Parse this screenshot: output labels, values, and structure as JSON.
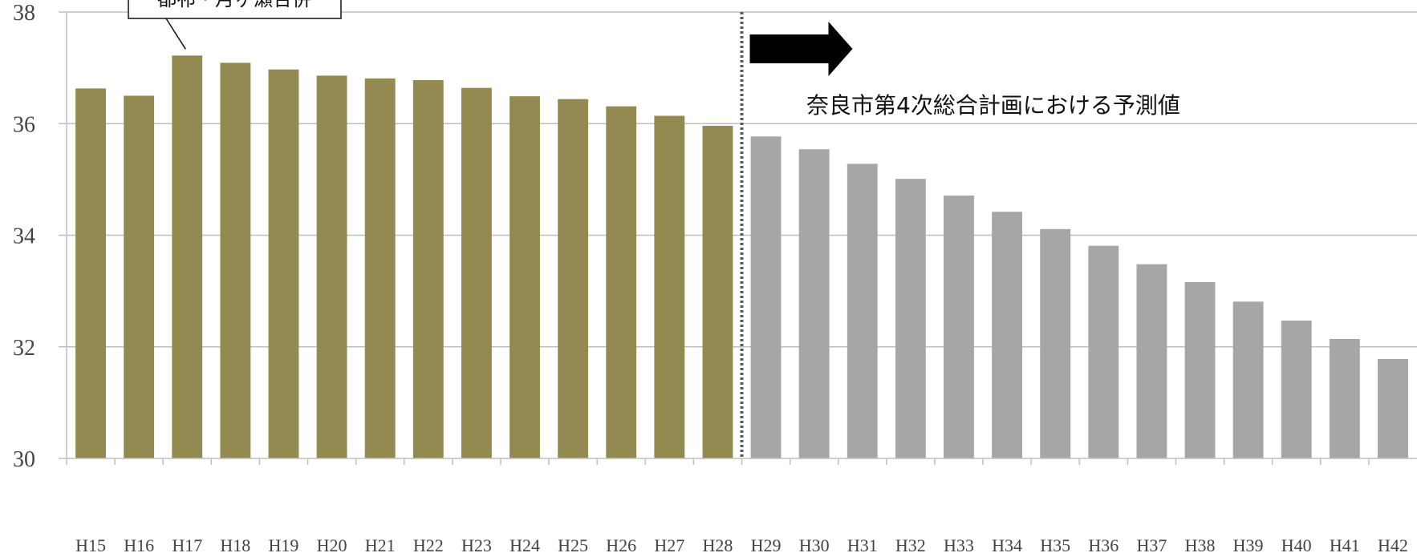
{
  "chart_data": {
    "type": "bar",
    "title": "",
    "xlabel": "",
    "ylabel": "",
    "ylim": [
      30,
      38
    ],
    "yticks": [
      30,
      32,
      34,
      36,
      38
    ],
    "grid": true,
    "categories": [
      "H15",
      "H16",
      "H17",
      "H18",
      "H19",
      "H20",
      "H21",
      "H22",
      "H23",
      "H24",
      "H25",
      "H26",
      "H27",
      "H28",
      "H29",
      "H30",
      "H31",
      "H32",
      "H33",
      "H34",
      "H35",
      "H36",
      "H37",
      "H38",
      "H39",
      "H40",
      "H41",
      "H42"
    ],
    "values": [
      36.63,
      36.5,
      37.22,
      37.09,
      36.97,
      36.86,
      36.81,
      36.78,
      36.64,
      36.49,
      36.44,
      36.31,
      36.14,
      35.96,
      35.77,
      35.54,
      35.28,
      35.01,
      34.71,
      34.42,
      34.11,
      33.81,
      33.48,
      33.16,
      32.81,
      32.47,
      32.14,
      31.78
    ],
    "actual_count": 14,
    "colors": {
      "actual": "#938a51",
      "forecast": "#a6a6a6",
      "grid": "#bfbfbf",
      "divider": "#595959",
      "arrow": "#000000"
    },
    "annotations": {
      "forecast_label": "奈良市第4次総合計画における予測値",
      "callout_label": "都祁・月ヶ瀬合併",
      "callout_category": "H17"
    }
  }
}
